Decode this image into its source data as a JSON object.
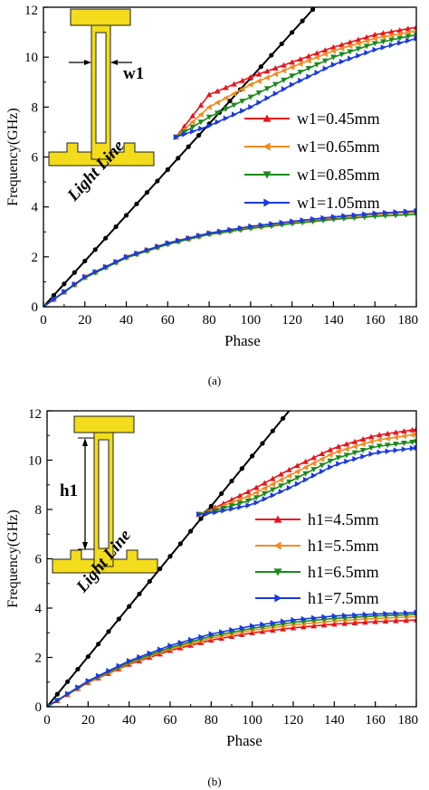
{
  "chart_data": [
    {
      "type": "line",
      "caption": "(a)",
      "xlabel": "Phase",
      "ylabel": "Frequency(GHz)",
      "xlim": [
        0,
        180
      ],
      "ylim": [
        0,
        12
      ],
      "xticks": [
        "0",
        "20",
        "40",
        "60",
        "80",
        "100",
        "120",
        "140",
        "160",
        "180"
      ],
      "yticks": [
        "0",
        "2",
        "4",
        "6",
        "8",
        "10",
        "12"
      ],
      "legend_position": "right",
      "annotations": {
        "light_line": "Light Line",
        "dimension": "w1"
      },
      "light_line": {
        "x": [
          0,
          131
        ],
        "y": [
          0,
          12
        ]
      },
      "series": [
        {
          "name": "w1=0.45mm",
          "color": "#e8141b",
          "marker": "triangle-up",
          "lower": {
            "x": [
              0,
              20,
              40,
              60,
              80,
              100,
              120,
              140,
              160,
              180
            ],
            "y": [
              0,
              1.2,
              2.0,
              2.55,
              2.95,
              3.2,
              3.4,
              3.58,
              3.72,
              3.82
            ]
          },
          "upper": {
            "x": [
              64,
              80,
              100,
              120,
              140,
              160,
              180
            ],
            "y": [
              6.8,
              8.5,
              9.2,
              9.8,
              10.4,
              10.9,
              11.2
            ]
          }
        },
        {
          "name": "w1=0.65mm",
          "color": "#f58a1f",
          "marker": "triangle-left",
          "lower": {
            "x": [
              0,
              20,
              40,
              60,
              80,
              100,
              120,
              140,
              160,
              180
            ],
            "y": [
              0,
              1.18,
              1.98,
              2.52,
              2.92,
              3.17,
              3.37,
              3.55,
              3.69,
              3.78
            ]
          },
          "upper": {
            "x": [
              64,
              80,
              100,
              120,
              140,
              160,
              180
            ],
            "y": [
              6.8,
              8.0,
              8.9,
              9.6,
              10.25,
              10.75,
              11.05
            ]
          }
        },
        {
          "name": "w1=0.85mm",
          "color": "#1a8a1a",
          "marker": "triangle-down",
          "lower": {
            "x": [
              0,
              20,
              40,
              60,
              80,
              100,
              120,
              140,
              160,
              180
            ],
            "y": [
              0,
              1.16,
              1.96,
              2.5,
              2.9,
              3.14,
              3.33,
              3.5,
              3.62,
              3.7
            ]
          },
          "upper": {
            "x": [
              64,
              80,
              100,
              120,
              140,
              160,
              180
            ],
            "y": [
              6.8,
              7.6,
              8.4,
              9.25,
              10.0,
              10.55,
              10.9
            ]
          }
        },
        {
          "name": "w1=1.05mm",
          "color": "#1a3adf",
          "marker": "triangle-right",
          "lower": {
            "x": [
              0,
              20,
              40,
              60,
              80,
              100,
              120,
              140,
              160,
              180
            ],
            "y": [
              0,
              1.2,
              2.0,
              2.55,
              2.95,
              3.22,
              3.42,
              3.6,
              3.74,
              3.84
            ]
          },
          "upper": {
            "x": [
              64,
              80,
              100,
              120,
              140,
              160,
              180
            ],
            "y": [
              6.8,
              7.25,
              8.0,
              8.9,
              9.7,
              10.3,
              10.75
            ]
          }
        }
      ]
    },
    {
      "type": "line",
      "caption": "(b)",
      "xlabel": "Phase",
      "ylabel": "Frequency(GHz)",
      "xlim": [
        0,
        180
      ],
      "ylim": [
        0,
        12
      ],
      "xticks": [
        "0",
        "20",
        "40",
        "60",
        "80",
        "100",
        "120",
        "140",
        "160",
        "180"
      ],
      "yticks": [
        "0",
        "2",
        "4",
        "6",
        "8",
        "10",
        "12"
      ],
      "legend_position": "right",
      "annotations": {
        "light_line": "Light Line",
        "dimension": "h1"
      },
      "light_line": {
        "x": [
          0,
          118
        ],
        "y": [
          0,
          12
        ]
      },
      "series": [
        {
          "name": "h1=4.5mm",
          "color": "#e8141b",
          "marker": "triangle-up",
          "lower": {
            "x": [
              0,
              20,
              40,
              60,
              80,
              100,
              120,
              140,
              160,
              180
            ],
            "y": [
              0,
              0.98,
              1.72,
              2.28,
              2.7,
              3.0,
              3.2,
              3.35,
              3.45,
              3.52
            ]
          },
          "upper": {
            "x": [
              74,
              80,
              100,
              120,
              140,
              160,
              180
            ],
            "y": [
              7.8,
              8.0,
              8.8,
              9.7,
              10.5,
              11.0,
              11.25
            ]
          }
        },
        {
          "name": "h1=5.5mm",
          "color": "#f58a1f",
          "marker": "triangle-left",
          "lower": {
            "x": [
              0,
              20,
              40,
              60,
              80,
              100,
              120,
              140,
              160,
              180
            ],
            "y": [
              0,
              1.0,
              1.76,
              2.34,
              2.78,
              3.1,
              3.32,
              3.48,
              3.58,
              3.65
            ]
          },
          "upper": {
            "x": [
              74,
              80,
              100,
              120,
              140,
              160,
              180
            ],
            "y": [
              7.8,
              7.95,
              8.6,
              9.45,
              10.3,
              10.8,
              11.05
            ]
          }
        },
        {
          "name": "h1=6.5mm",
          "color": "#1a8a1a",
          "marker": "triangle-down",
          "lower": {
            "x": [
              0,
              20,
              40,
              60,
              80,
              100,
              120,
              140,
              160,
              180
            ],
            "y": [
              0,
              1.02,
              1.8,
              2.4,
              2.86,
              3.18,
              3.42,
              3.58,
              3.68,
              3.74
            ]
          },
          "upper": {
            "x": [
              74,
              80,
              100,
              120,
              140,
              160,
              180
            ],
            "y": [
              7.8,
              7.9,
              8.4,
              9.2,
              10.05,
              10.55,
              10.75
            ]
          }
        },
        {
          "name": "h1=7.5mm",
          "color": "#1a3adf",
          "marker": "triangle-right",
          "lower": {
            "x": [
              0,
              20,
              40,
              60,
              80,
              100,
              120,
              140,
              160,
              180
            ],
            "y": [
              0,
              1.05,
              1.86,
              2.48,
              2.95,
              3.28,
              3.52,
              3.68,
              3.76,
              3.82
            ]
          },
          "upper": {
            "x": [
              74,
              80,
              100,
              120,
              140,
              160,
              180
            ],
            "y": [
              7.8,
              7.85,
              8.2,
              8.95,
              9.8,
              10.3,
              10.5
            ]
          }
        }
      ]
    }
  ]
}
